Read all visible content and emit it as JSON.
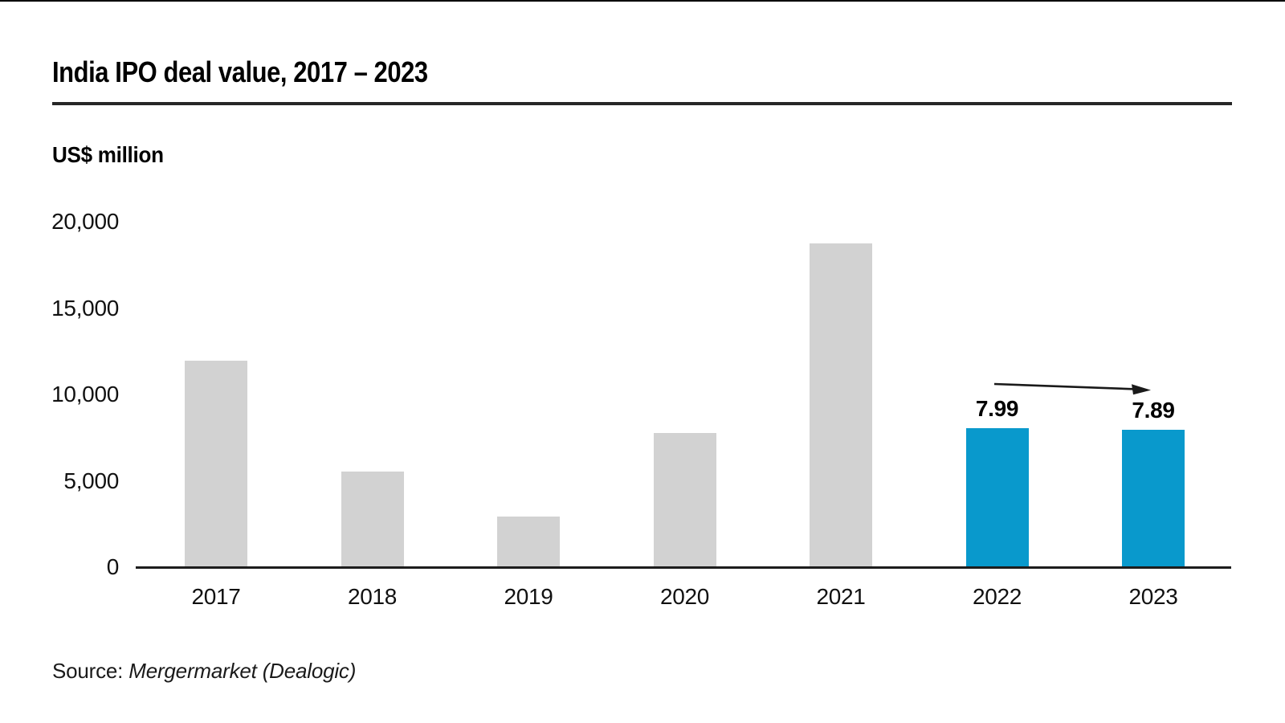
{
  "title": "India IPO deal value, 2017 – 2023",
  "axis_unit_label": "US$ million",
  "source": {
    "prefix": "Source:",
    "name": "Mergermarket (Dealogic)"
  },
  "colors": {
    "bar_default": "#d2d2d2",
    "bar_highlight": "#0999cc",
    "axis_line": "#1d1d1d",
    "title_rule": "#262626",
    "text": "#000000"
  },
  "chart_data": {
    "type": "bar",
    "title": "India IPO deal value, 2017 – 2023",
    "xlabel": "",
    "ylabel": "US$ million",
    "ylim": [
      0,
      20000
    ],
    "ytick_step": 5000,
    "ytick_labels_top_to_bottom": [
      "20,000",
      "15,000",
      "10,000",
      "5,000",
      "0"
    ],
    "grid": false,
    "legend": "none",
    "categories": [
      "2017",
      "2018",
      "2019",
      "2020",
      "2021",
      "2022",
      "2023"
    ],
    "values": [
      11900,
      5500,
      2900,
      7700,
      18700,
      7990,
      7890
    ],
    "highlighted_categories": [
      "2022",
      "2023"
    ],
    "bar_labels": {
      "2022": "7.99",
      "2023": "7.89"
    },
    "annotation": {
      "type": "arrow",
      "from_category": "2022",
      "to_category": "2023",
      "description": "flat arrow pointing right, slightly downward, from above 2022 bar to above 2023 bar"
    }
  }
}
